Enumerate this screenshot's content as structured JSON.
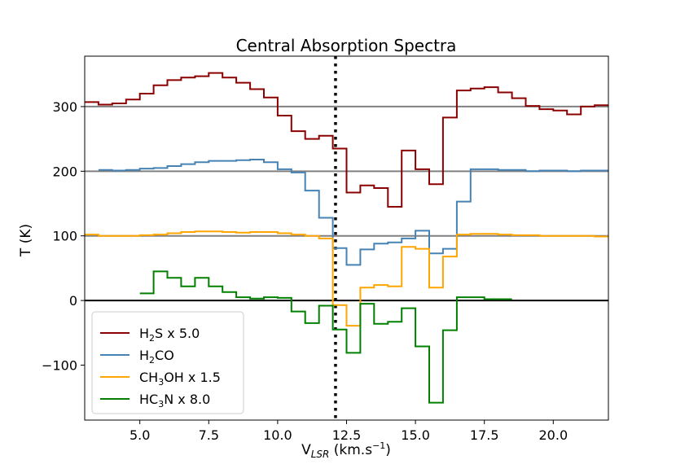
{
  "chart_data": {
    "type": "line",
    "step": "post",
    "title": "Central Absorption Spectra",
    "xlabel": "V_LSR (km.s^-1)",
    "ylabel": "T (K)",
    "xlim": [
      3.0,
      22.0
    ],
    "ylim": [
      -185,
      378
    ],
    "xticks": [
      5.0,
      7.5,
      10.0,
      12.5,
      15.0,
      17.5,
      20.0
    ],
    "xtick_labels": [
      "5.0",
      "7.5",
      "10.0",
      "12.5",
      "15.0",
      "17.5",
      "20.0"
    ],
    "yticks": [
      -100,
      0,
      100,
      200,
      300
    ],
    "ytick_labels": [
      "−100",
      "0",
      "100",
      "200",
      "300"
    ],
    "reference_lines": [
      {
        "name": "baseline-300",
        "y": 300,
        "color": "#808080"
      },
      {
        "name": "baseline-200",
        "y": 200,
        "color": "#808080"
      },
      {
        "name": "baseline-100",
        "y": 100,
        "color": "#808080"
      },
      {
        "name": "baseline-0",
        "y": 0,
        "color": "#000000"
      }
    ],
    "vertical_marker": {
      "x": 12.1,
      "style": "dotted",
      "color": "#000000"
    },
    "legend_position": "lower-left",
    "series": [
      {
        "name": "H2S x 5.0",
        "legend": {
          "prefix": "H",
          "sub": "2",
          "suffix": "S x 5.0"
        },
        "color": "#8b0000",
        "x": [
          3.0,
          3.5,
          4.0,
          4.5,
          5.0,
          5.5,
          6.0,
          6.5,
          7.0,
          7.5,
          8.0,
          8.5,
          9.0,
          9.5,
          10.0,
          10.5,
          11.0,
          11.5,
          12.0,
          12.5,
          13.0,
          13.5,
          14.0,
          14.5,
          15.0,
          15.5,
          16.0,
          16.5,
          17.0,
          17.5,
          18.0,
          18.5,
          19.0,
          19.5,
          20.0,
          20.5,
          21.0,
          21.5,
          22.0
        ],
        "y": [
          307,
          303,
          305,
          311,
          320,
          333,
          341,
          345,
          347,
          352,
          345,
          337,
          327,
          314,
          286,
          262,
          250,
          255,
          235,
          167,
          178,
          174,
          145,
          232,
          203,
          180,
          283,
          325,
          328,
          330,
          322,
          313,
          301,
          296,
          294,
          288,
          300,
          302,
          302
        ]
      },
      {
        "name": "H2CO",
        "legend": {
          "prefix": "H",
          "sub": "2",
          "suffix": "CO"
        },
        "color": "#4682b4",
        "x": [
          3.5,
          4.0,
          4.5,
          5.0,
          5.5,
          6.0,
          6.5,
          7.0,
          7.5,
          8.0,
          8.5,
          9.0,
          9.5,
          10.0,
          10.5,
          11.0,
          11.5,
          12.0,
          12.5,
          13.0,
          13.5,
          14.0,
          14.5,
          15.0,
          15.5,
          16.0,
          16.5,
          17.0,
          17.5,
          18.0,
          18.5,
          19.0,
          19.5,
          20.0,
          20.5,
          21.0,
          21.5,
          22.0
        ],
        "y": [
          202,
          201,
          202,
          204,
          205,
          208,
          211,
          214,
          216,
          216,
          217,
          218,
          214,
          203,
          198,
          170,
          128,
          81,
          55,
          79,
          88,
          90,
          96,
          108,
          73,
          80,
          153,
          203,
          203,
          202,
          202,
          200,
          201,
          201,
          200,
          201,
          201,
          201
        ]
      },
      {
        "name": "CH3OH x 1.5",
        "legend": {
          "prefix": "CH",
          "sub": "3",
          "suffix": "OH x 1.5"
        },
        "color": "#ffa500",
        "x": [
          3.0,
          3.5,
          4.0,
          4.5,
          5.0,
          5.5,
          6.0,
          6.5,
          7.0,
          7.5,
          8.0,
          8.5,
          9.0,
          9.5,
          10.0,
          10.5,
          11.0,
          11.5,
          12.0,
          12.5,
          13.0,
          13.5,
          14.0,
          14.5,
          15.0,
          15.5,
          16.0,
          16.5,
          17.0,
          17.5,
          18.0,
          18.5,
          19.0,
          19.5,
          20.0,
          20.5,
          21.0,
          21.5,
          22.0
        ],
        "y": [
          102,
          100,
          100,
          100,
          101,
          102,
          104,
          106,
          107,
          107,
          106,
          105,
          106,
          106,
          104,
          102,
          100,
          96,
          -7,
          -39,
          20,
          24,
          22,
          83,
          80,
          20,
          68,
          102,
          103,
          103,
          102,
          101,
          101,
          100,
          100,
          100,
          100,
          99,
          99
        ]
      },
      {
        "name": "HC3N x 8.0",
        "legend": {
          "prefix": "HC",
          "sub": "3",
          "suffix": "N x 8.0"
        },
        "color": "#008000",
        "x": [
          5.0,
          5.5,
          6.0,
          6.5,
          7.0,
          7.5,
          8.0,
          8.5,
          9.0,
          9.5,
          10.0,
          10.5,
          11.0,
          11.5,
          12.0,
          12.5,
          13.0,
          13.5,
          14.0,
          14.5,
          15.0,
          15.5,
          16.0,
          16.5,
          17.0,
          17.5,
          18.0
        ],
        "y": [
          11,
          45,
          35,
          22,
          35,
          22,
          13,
          5,
          3,
          5,
          4,
          -17,
          -35,
          -8,
          -45,
          -81,
          -5,
          -36,
          -33,
          -12,
          -71,
          -158,
          -46,
          5,
          5,
          2,
          2
        ]
      }
    ]
  }
}
